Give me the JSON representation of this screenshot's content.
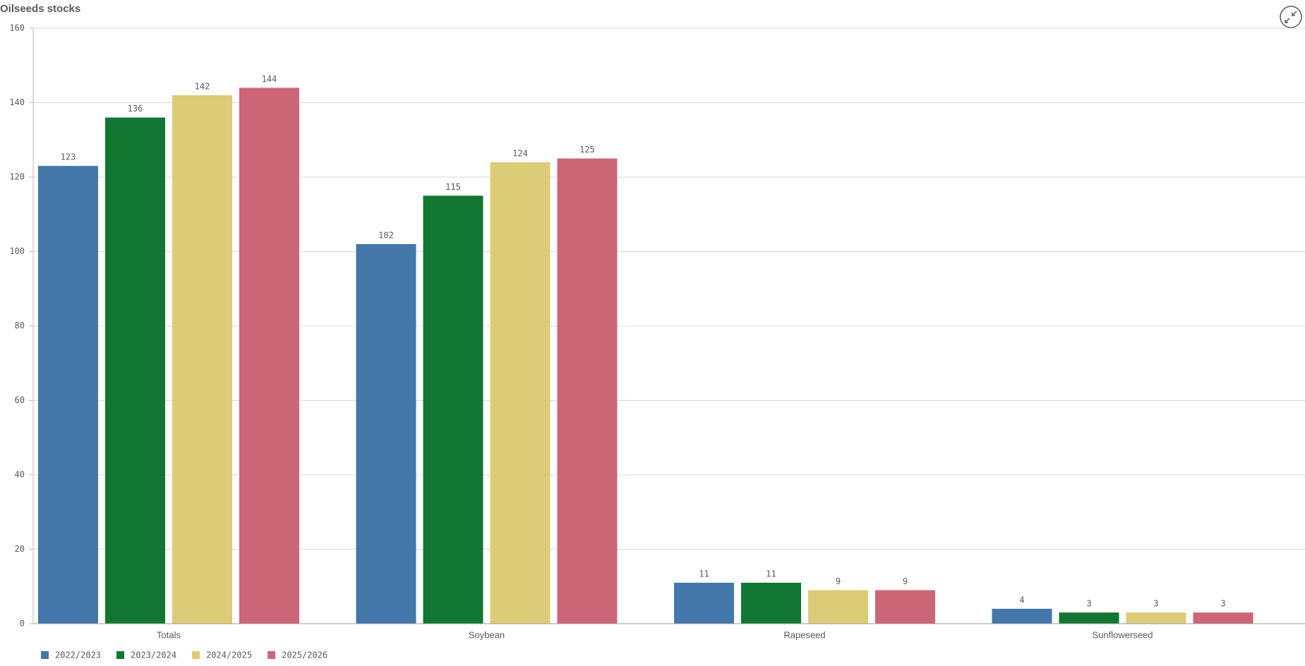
{
  "chart_data": {
    "type": "bar",
    "title": "Oilseeds stocks",
    "categories": [
      "Totals",
      "Soybean",
      "Rapeseed",
      "Sunflowerseed"
    ],
    "series": [
      {
        "name": "2022/2023",
        "color": "#4477aa",
        "values": [
          123,
          102,
          11,
          4
        ]
      },
      {
        "name": "2023/2024",
        "color": "#117733",
        "values": [
          136,
          115,
          11,
          3
        ]
      },
      {
        "name": "2024/2025",
        "color": "#ddcc77",
        "values": [
          142,
          124,
          9,
          3
        ]
      },
      {
        "name": "2025/2026",
        "color": "#cc6677",
        "values": [
          144,
          125,
          9,
          3
        ]
      }
    ],
    "ylim": [
      0,
      160
    ],
    "yticks": [
      0,
      20,
      40,
      60,
      80,
      100,
      120,
      140,
      160
    ],
    "grid": true,
    "legend": "bottom-left"
  }
}
